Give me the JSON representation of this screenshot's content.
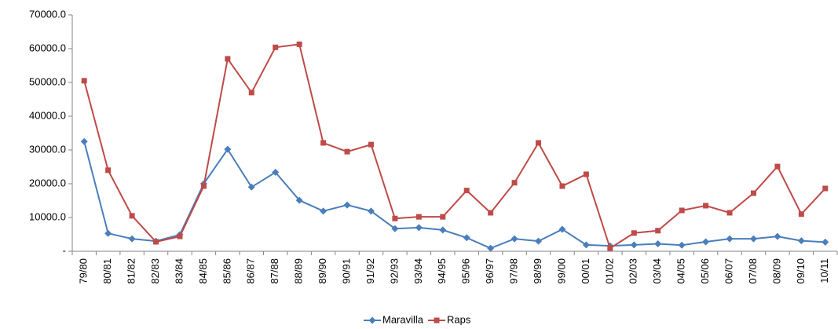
{
  "chart_data": {
    "type": "line",
    "categories": [
      "79/80",
      "80/81",
      "81/82",
      "82/83",
      "83/84",
      "84/85",
      "85/86",
      "86/87",
      "87/88",
      "88/89",
      "89/90",
      "90/91",
      "91/92",
      "92/93",
      "93/94",
      "94/95",
      "95/96",
      "96/97",
      "97/98",
      "98/99",
      "99/00",
      "00/01",
      "01/02",
      "02/03",
      "03/04",
      "04/05",
      "05/06",
      "06/07",
      "07/08",
      "08/09",
      "09/10",
      "10/11"
    ],
    "series": [
      {
        "name": "Maravilla",
        "color": "#4a7ebb",
        "marker": "diamond",
        "values": [
          32500,
          5300,
          3700,
          3000,
          4900,
          20000,
          30200,
          19000,
          23400,
          15100,
          11900,
          13700,
          11900,
          6700,
          7000,
          6300,
          4000,
          900,
          3700,
          3000,
          6500,
          1900,
          1600,
          1900,
          2200,
          1800,
          2800,
          3700,
          3700,
          4400,
          3100,
          2700
        ]
      },
      {
        "name": "Raps",
        "color": "#be4b48",
        "marker": "square",
        "values": [
          50500,
          24000,
          10500,
          2800,
          4400,
          19300,
          57000,
          47000,
          60400,
          61300,
          32100,
          29500,
          31600,
          9700,
          10200,
          10200,
          18000,
          11400,
          20300,
          32100,
          19300,
          22800,
          900,
          5400,
          6100,
          12100,
          13500,
          11400,
          17200,
          25100,
          11000,
          18600
        ]
      }
    ],
    "ylim": [
      0,
      70000
    ],
    "yticks": [
      {
        "value": 0,
        "label": "-"
      },
      {
        "value": 10000,
        "label": "10000.0"
      },
      {
        "value": 20000,
        "label": "20000.0"
      },
      {
        "value": 30000,
        "label": "30000.0"
      },
      {
        "value": 40000,
        "label": "40000.0"
      },
      {
        "value": 50000,
        "label": "50000.0"
      },
      {
        "value": 60000,
        "label": "60000.0"
      },
      {
        "value": 70000,
        "label": "70000.0"
      }
    ],
    "grid": false,
    "legend": "bottom"
  }
}
